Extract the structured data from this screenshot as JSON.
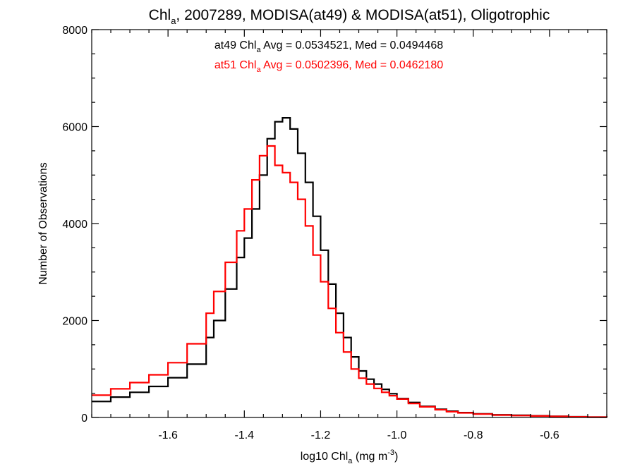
{
  "chart_data": {
    "type": "line",
    "style": "step-histogram",
    "title": {
      "main": "Chl",
      "sub": "a",
      "rest": ", 2007289, MODISA(at49) & MODISA(at51), Oligotrophic"
    },
    "xlabel": {
      "pre": "log10 Chl",
      "sub": "a",
      "mid": " (mg m",
      "sup": "-3",
      "post": ")"
    },
    "ylabel": "Number of Observations",
    "xlim": [
      -1.8,
      -0.45
    ],
    "ylim": [
      0,
      8000
    ],
    "x_ticks": [
      -1.6,
      -1.4,
      -1.2,
      -1.0,
      -0.8,
      -0.6
    ],
    "x_tick_labels": [
      "-1.6",
      "-1.4",
      "-1.2",
      "-1.0",
      "-0.8",
      "-0.6"
    ],
    "x_minor_step": 0.05,
    "y_ticks": [
      0,
      2000,
      4000,
      6000,
      8000
    ],
    "y_tick_labels": [
      "0",
      "2000",
      "4000",
      "6000",
      "8000"
    ],
    "y_minor_step": 500,
    "grid": false,
    "annotations": [
      {
        "pre": "at49 Chl",
        "sub": "a",
        "post": " Avg = 0.0534521, Med = 0.0494468",
        "color": "#000000"
      },
      {
        "pre": "at51 Chl",
        "sub": "a",
        "post": " Avg = 0.0502396, Med = 0.0462180",
        "color": "#ff0000"
      }
    ],
    "series": [
      {
        "color": "#000000",
        "x": [
          -1.8,
          -1.75,
          -1.7,
          -1.65,
          -1.6,
          -1.55,
          -1.5,
          -1.48,
          -1.45,
          -1.42,
          -1.4,
          -1.38,
          -1.36,
          -1.34,
          -1.32,
          -1.3,
          -1.28,
          -1.26,
          -1.24,
          -1.22,
          -1.2,
          -1.18,
          -1.16,
          -1.14,
          -1.12,
          -1.1,
          -1.08,
          -1.06,
          -1.04,
          -1.02,
          -1.0,
          -0.97,
          -0.94,
          -0.9,
          -0.87,
          -0.84,
          -0.8,
          -0.75,
          -0.7,
          -0.65,
          -0.6,
          -0.55,
          -0.5,
          -0.45
        ],
        "y": [
          330,
          420,
          520,
          640,
          820,
          1100,
          1650,
          2000,
          2650,
          3300,
          3700,
          4300,
          5000,
          5750,
          6100,
          6180,
          5950,
          5450,
          4850,
          4150,
          3450,
          2750,
          2150,
          1650,
          1250,
          960,
          790,
          690,
          580,
          490,
          390,
          310,
          230,
          170,
          130,
          100,
          75,
          55,
          45,
          35,
          25,
          15,
          8,
          4
        ]
      },
      {
        "color": "#ff0000",
        "x": [
          -1.8,
          -1.75,
          -1.7,
          -1.65,
          -1.6,
          -1.55,
          -1.5,
          -1.48,
          -1.45,
          -1.42,
          -1.4,
          -1.38,
          -1.36,
          -1.34,
          -1.32,
          -1.3,
          -1.28,
          -1.26,
          -1.24,
          -1.22,
          -1.2,
          -1.18,
          -1.16,
          -1.14,
          -1.12,
          -1.1,
          -1.08,
          -1.06,
          -1.04,
          -1.02,
          -1.0,
          -0.97,
          -0.94,
          -0.9,
          -0.87,
          -0.84,
          -0.8,
          -0.75,
          -0.7,
          -0.65,
          -0.6,
          -0.55,
          -0.5,
          -0.45
        ],
        "y": [
          460,
          590,
          720,
          880,
          1130,
          1520,
          2150,
          2600,
          3200,
          3850,
          4300,
          4900,
          5400,
          5600,
          5200,
          5050,
          4850,
          4500,
          3950,
          3350,
          2800,
          2250,
          1750,
          1350,
          1000,
          810,
          690,
          600,
          520,
          450,
          380,
          290,
          220,
          160,
          120,
          95,
          70,
          50,
          40,
          30,
          22,
          13,
          7,
          3
        ]
      }
    ]
  }
}
